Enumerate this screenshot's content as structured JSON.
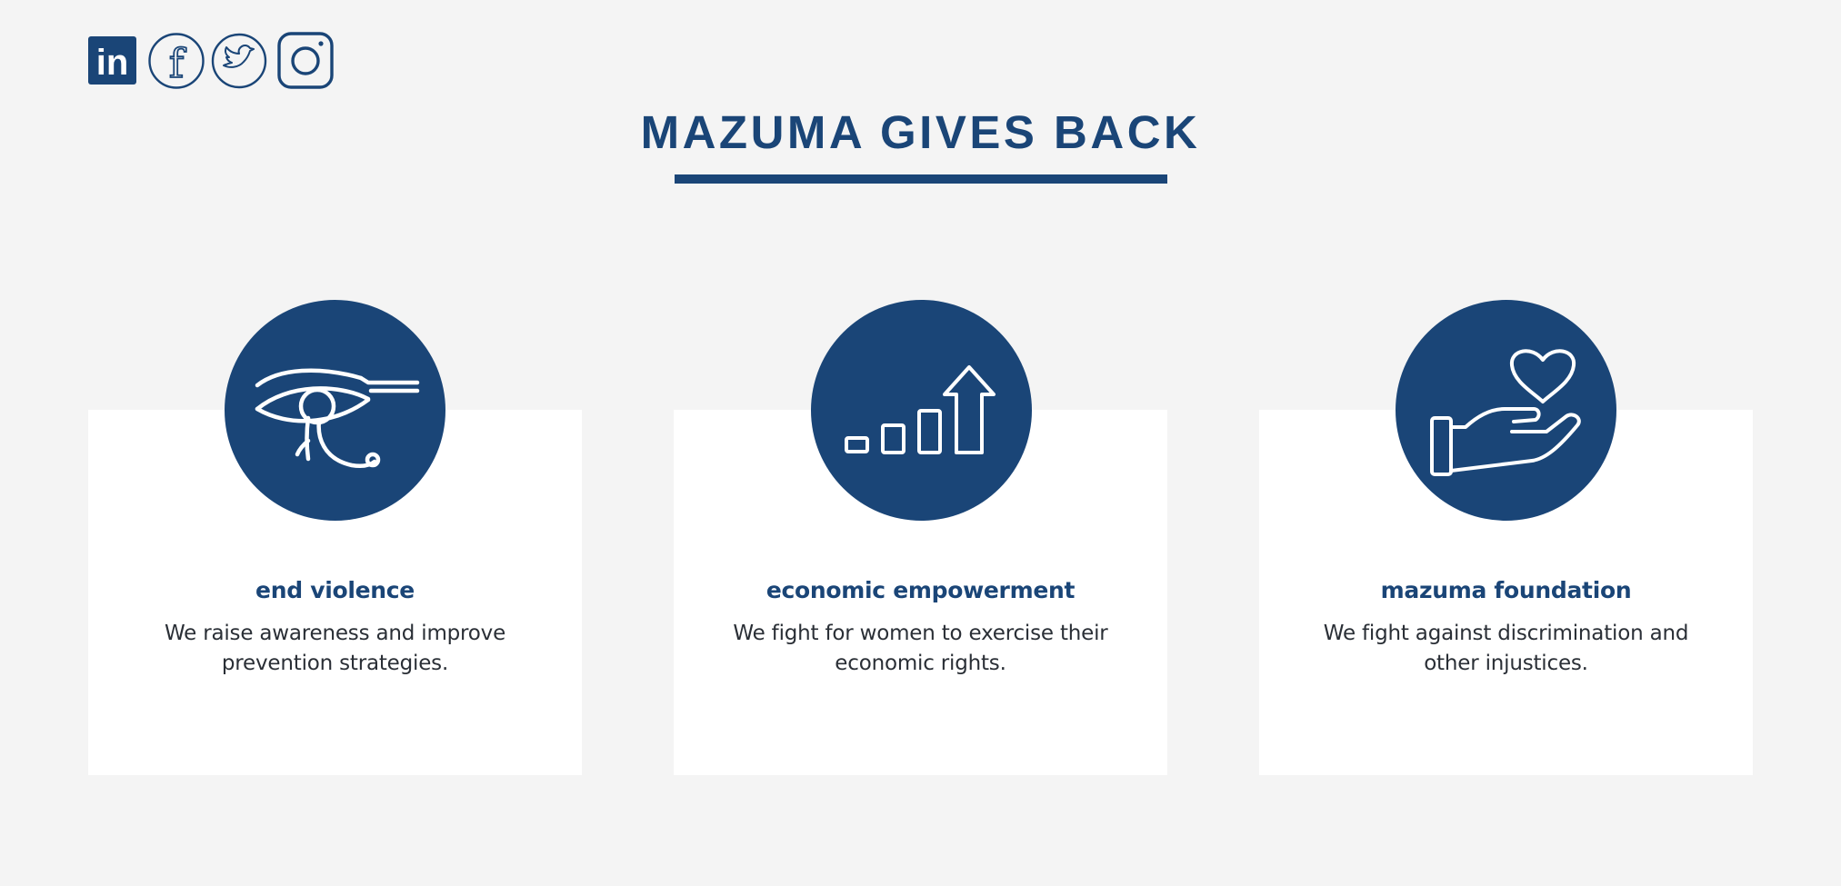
{
  "header": {
    "title": "MAZUMA GIVES BACK"
  },
  "social": [
    {
      "name": "linkedin",
      "icon": "linkedin-icon",
      "text": "in"
    },
    {
      "name": "facebook",
      "icon": "facebook-icon",
      "text": "f"
    },
    {
      "name": "twitter",
      "icon": "twitter-icon"
    },
    {
      "name": "instagram",
      "icon": "instagram-icon"
    }
  ],
  "cards": [
    {
      "title": "end violence",
      "text": "We raise awareness and improve prevention strategies.",
      "icon": "eye-of-horus-icon"
    },
    {
      "title": "economic empowerment",
      "text": "We fight for women to exercise their economic rights.",
      "icon": "growth-chart-arrow-icon"
    },
    {
      "title": "mazuma foundation",
      "text": "We fight against discrimination and other injustices.",
      "icon": "hand-holding-heart-icon"
    }
  ],
  "colors": {
    "brand": "#1a4577",
    "background": "#f4f4f4",
    "card": "#ffffff",
    "body_text": "#2a2f36"
  }
}
